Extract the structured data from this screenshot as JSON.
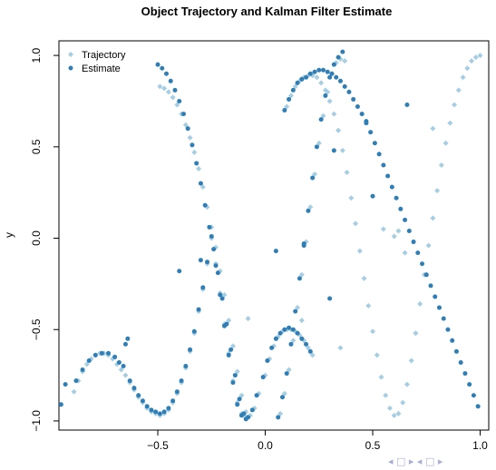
{
  "chart_data": {
    "type": "scatter",
    "title": "Object Trajectory and Kalman Filter Estimate",
    "xlabel": "",
    "ylabel": "y",
    "xlim": [
      -0.96,
      1.04
    ],
    "ylim": [
      -1.05,
      1.08
    ],
    "x_ticks": [
      -0.5,
      0.0,
      0.5,
      1.0
    ],
    "x_tick_labels": [
      "−0.5",
      "0.0",
      "0.5",
      "1.0"
    ],
    "y_ticks": [
      -1.0,
      -0.5,
      0.0,
      0.5,
      1.0
    ],
    "y_tick_labels": [
      "−1.0",
      "−0.5",
      "0.0",
      "0.5",
      "1.0"
    ],
    "grid": false,
    "legend_position": "top-left",
    "series": [
      {
        "name": "Trajectory",
        "color": "#a6cee3",
        "marker": "diamond",
        "x": [
          -0.89,
          -0.87,
          -0.85,
          -0.83,
          -0.81,
          -0.79,
          -0.77,
          -0.75,
          -0.73,
          -0.71,
          -0.69,
          -0.67,
          -0.65,
          -0.63,
          -0.61,
          -0.59,
          -0.57,
          -0.55,
          -0.53,
          -0.51,
          -0.49,
          -0.47,
          -0.45,
          -0.43,
          -0.41,
          -0.39,
          -0.37,
          -0.35,
          -0.33,
          -0.31,
          -0.29,
          -0.27,
          -0.25,
          -0.23,
          -0.21,
          -0.19,
          -0.17,
          -0.15,
          -0.13,
          -0.11,
          -0.09,
          -0.49,
          -0.47,
          -0.45,
          -0.43,
          -0.41,
          -0.39,
          -0.37,
          -0.35,
          -0.33,
          -0.31,
          -0.29,
          -0.27,
          -0.25,
          -0.23,
          -0.21,
          -0.19,
          -0.17,
          -0.15,
          -0.13,
          -0.11,
          -0.09,
          -0.07,
          -0.05,
          -0.03,
          0.0,
          0.02,
          0.04,
          0.06,
          0.08,
          0.1,
          0.12,
          0.14,
          0.16,
          0.18,
          0.2,
          0.22,
          0.07,
          0.09,
          0.11,
          0.13,
          0.15,
          0.17,
          0.19,
          0.21,
          0.23,
          0.25,
          0.27,
          0.29,
          0.31,
          0.33,
          0.35,
          0.37,
          0.1,
          0.12,
          0.14,
          0.16,
          0.18,
          0.2,
          0.22,
          0.24,
          0.26,
          0.28,
          0.3,
          0.32,
          0.34,
          0.36,
          0.38,
          0.4,
          0.42,
          0.44,
          0.46,
          0.48,
          0.5,
          0.52,
          0.54,
          0.56,
          0.58,
          0.6,
          0.62,
          0.64,
          0.66,
          0.68,
          0.7,
          0.72,
          0.74,
          0.76,
          0.78,
          0.8,
          0.82,
          0.84,
          0.86,
          0.88,
          0.9,
          0.92,
          0.94,
          0.96,
          0.98,
          1.0,
          0.55,
          0.65,
          0.78,
          0.62,
          0.6,
          -0.08,
          0.17,
          0.35,
          0.7
        ],
        "y": [
          -0.84,
          -0.78,
          -0.73,
          -0.69,
          -0.66,
          -0.64,
          -0.63,
          -0.63,
          -0.64,
          -0.66,
          -0.69,
          -0.72,
          -0.75,
          -0.79,
          -0.83,
          -0.87,
          -0.9,
          -0.93,
          -0.95,
          -0.96,
          -0.97,
          -0.96,
          -0.94,
          -0.9,
          -0.85,
          -0.79,
          -0.71,
          -0.62,
          -0.52,
          -0.4,
          -0.28,
          -0.14,
          0.0,
          -0.14,
          -0.3,
          -0.47,
          -0.63,
          -0.78,
          -0.9,
          -0.96,
          -0.98,
          0.83,
          0.82,
          0.8,
          0.77,
          0.73,
          0.68,
          0.62,
          0.55,
          0.47,
          0.38,
          0.28,
          0.17,
          0.06,
          -0.05,
          -0.18,
          -0.31,
          -0.45,
          -0.59,
          -0.73,
          -0.86,
          -0.95,
          -0.97,
          -0.93,
          -0.85,
          -0.75,
          -0.66,
          -0.59,
          -0.54,
          -0.51,
          -0.5,
          -0.5,
          -0.51,
          -0.53,
          -0.56,
          -0.6,
          -0.64,
          -0.96,
          -0.85,
          -0.72,
          -0.56,
          -0.38,
          -0.2,
          -0.02,
          0.17,
          0.35,
          0.52,
          0.67,
          0.8,
          0.9,
          0.96,
          0.98,
          0.97,
          0.72,
          0.78,
          0.83,
          0.86,
          0.88,
          0.89,
          0.89,
          0.88,
          0.85,
          0.81,
          0.75,
          0.68,
          0.59,
          0.48,
          0.36,
          0.22,
          0.08,
          -0.07,
          -0.22,
          -0.37,
          -0.51,
          -0.64,
          -0.76,
          -0.86,
          -0.93,
          -0.97,
          -0.96,
          -0.9,
          -0.8,
          -0.67,
          -0.52,
          -0.36,
          -0.2,
          -0.04,
          0.11,
          0.26,
          0.4,
          0.52,
          0.63,
          0.73,
          0.81,
          0.88,
          0.93,
          0.97,
          0.99,
          1.0,
          0.05,
          -0.08,
          0.6,
          0.04,
          0.01,
          -0.44,
          -0.45,
          -0.6,
          -0.52
        ]
      },
      {
        "name": "Estimate",
        "color": "#2f7eb6",
        "marker": "circle",
        "x": [
          -0.95,
          -0.93,
          -0.88,
          -0.85,
          -0.82,
          -0.79,
          -0.76,
          -0.73,
          -0.7,
          -0.68,
          -0.66,
          -0.65,
          -0.64,
          -0.63,
          -0.61,
          -0.59,
          -0.57,
          -0.55,
          -0.53,
          -0.51,
          -0.49,
          -0.47,
          -0.45,
          -0.43,
          -0.41,
          -0.39,
          -0.37,
          -0.35,
          -0.33,
          -0.31,
          -0.29,
          -0.27,
          -0.25,
          -0.23,
          -0.21,
          -0.19,
          -0.17,
          -0.15,
          -0.13,
          -0.11,
          -0.09,
          -0.5,
          -0.48,
          -0.46,
          -0.44,
          -0.42,
          -0.4,
          -0.38,
          -0.36,
          -0.34,
          -0.32,
          -0.3,
          -0.28,
          -0.26,
          -0.24,
          -0.22,
          -0.2,
          -0.18,
          -0.16,
          -0.14,
          -0.12,
          -0.1,
          -0.08,
          -0.06,
          -0.04,
          -0.01,
          0.01,
          0.03,
          0.05,
          0.07,
          0.09,
          0.11,
          0.13,
          0.15,
          0.17,
          0.19,
          0.21,
          0.06,
          0.08,
          0.1,
          0.12,
          0.14,
          0.16,
          0.18,
          0.2,
          0.22,
          0.24,
          0.26,
          0.28,
          0.3,
          0.32,
          0.34,
          0.36,
          0.09,
          0.11,
          0.13,
          0.15,
          0.17,
          0.19,
          0.21,
          0.23,
          0.25,
          0.27,
          0.29,
          0.31,
          0.33,
          0.35,
          0.37,
          0.39,
          0.41,
          0.43,
          0.45,
          0.47,
          0.49,
          0.51,
          0.53,
          0.55,
          0.57,
          0.59,
          0.61,
          0.63,
          0.65,
          0.67,
          0.69,
          0.71,
          0.73,
          0.75,
          0.77,
          0.79,
          0.81,
          0.83,
          0.85,
          0.87,
          0.89,
          0.91,
          0.93,
          0.95,
          0.97,
          0.99,
          0.66,
          0.47,
          0.32,
          0.18,
          0.5,
          0.05,
          -0.3,
          -0.4,
          0.3
        ],
        "y": [
          -0.91,
          -0.8,
          -0.78,
          -0.72,
          -0.67,
          -0.64,
          -0.63,
          -0.63,
          -0.65,
          -0.68,
          -0.7,
          -0.58,
          -0.55,
          -0.78,
          -0.82,
          -0.86,
          -0.89,
          -0.92,
          -0.94,
          -0.95,
          -0.96,
          -0.95,
          -0.93,
          -0.89,
          -0.84,
          -0.78,
          -0.7,
          -0.61,
          -0.51,
          -0.39,
          -0.27,
          -0.13,
          0.01,
          -0.15,
          -0.31,
          -0.48,
          -0.64,
          -0.79,
          -0.91,
          -0.97,
          -0.99,
          0.95,
          0.93,
          0.9,
          0.86,
          0.81,
          0.75,
          0.68,
          0.6,
          0.51,
          0.41,
          0.3,
          0.18,
          0.06,
          -0.06,
          -0.19,
          -0.33,
          -0.47,
          -0.61,
          -0.75,
          -0.88,
          -0.96,
          -0.98,
          -0.94,
          -0.86,
          -0.76,
          -0.67,
          -0.6,
          -0.55,
          -0.52,
          -0.5,
          -0.49,
          -0.5,
          -0.52,
          -0.55,
          -0.58,
          -0.62,
          -0.98,
          -0.87,
          -0.74,
          -0.58,
          -0.4,
          -0.22,
          -0.04,
          0.15,
          0.33,
          0.5,
          0.65,
          0.78,
          0.88,
          0.95,
          0.99,
          1.02,
          0.7,
          0.76,
          0.81,
          0.85,
          0.87,
          0.88,
          0.9,
          0.91,
          0.92,
          0.92,
          0.91,
          0.9,
          0.88,
          0.86,
          0.83,
          0.8,
          0.76,
          0.72,
          0.68,
          0.63,
          0.58,
          0.52,
          0.46,
          0.4,
          0.34,
          0.28,
          0.22,
          0.16,
          0.1,
          0.04,
          -0.02,
          -0.08,
          -0.14,
          -0.2,
          -0.26,
          -0.32,
          -0.38,
          -0.44,
          -0.5,
          -0.56,
          -0.62,
          -0.68,
          -0.74,
          -0.8,
          -0.86,
          -0.92,
          0.73,
          0.64,
          0.48,
          -0.03,
          0.23,
          -0.07,
          -0.12,
          -0.18,
          -0.33
        ]
      }
    ]
  },
  "nav": {
    "arrows": "◂ □ ▸ ◂ □ ▸"
  }
}
